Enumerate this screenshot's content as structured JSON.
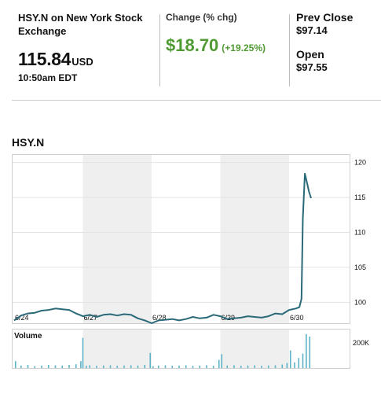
{
  "quote": {
    "symbol_label": "HSY.N on New York Stock Exchange",
    "price": "115.84",
    "currency": "USD",
    "time": "10:50am EDT",
    "change_label": "Change (% chg)",
    "change_value": "$18.70",
    "change_pct": "(+19.25%)",
    "prev_close_label": "Prev Close",
    "prev_close_value": "$97.14",
    "open_label": "Open",
    "open_value": "$97.55"
  },
  "colors": {
    "positive": "#4f9a33",
    "line": "#2a6a78",
    "volume": "#5bb3c8",
    "shade": "#efefef"
  },
  "chart_data": {
    "type": "line",
    "title": "HSY.N",
    "y_ticks": [
      100,
      105,
      110,
      115,
      120
    ],
    "ylim": [
      97,
      121.2
    ],
    "x_ticks": [
      "6/24",
      "6/27",
      "6/28",
      "6/29",
      "6/30"
    ],
    "shaded_days": [
      "6/27",
      "6/29"
    ],
    "series": [
      {
        "x": [
          0,
          0.1,
          0.2,
          0.3,
          0.4,
          0.5,
          0.6,
          0.7,
          0.8,
          0.9,
          1,
          1.1,
          1.2,
          1.3,
          1.4,
          1.5,
          1.6,
          1.7,
          1.8,
          1.9,
          2,
          2.1,
          2.2,
          2.3,
          2.4,
          2.5,
          2.6,
          2.7,
          2.8,
          2.9,
          3,
          3.1,
          3.2,
          3.3,
          3.4,
          3.5,
          3.6,
          3.7,
          3.8,
          3.9,
          4,
          4.1,
          4.15,
          4.18,
          4.2,
          4.23,
          4.26,
          4.29,
          4.32
        ],
        "values": [
          97.4,
          98.1,
          98.4,
          98.5,
          98.8,
          98.9,
          99.1,
          99.0,
          98.9,
          98.4,
          98.0,
          98.2,
          97.9,
          98.2,
          98.3,
          98.1,
          98.3,
          98.2,
          97.7,
          97.4,
          97.0,
          97.4,
          97.5,
          97.6,
          97.4,
          97.6,
          97.9,
          97.7,
          97.8,
          98.2,
          98.0,
          97.6,
          97.7,
          97.8,
          98.0,
          97.9,
          97.8,
          98.0,
          98.4,
          98.3,
          98.9,
          99.1,
          99.3,
          100.5,
          112.0,
          118.4,
          117.1,
          115.8,
          114.9
        ]
      }
    ],
    "volume": {
      "label": "Volume",
      "tick": "200K",
      "max": 300,
      "x": [
        0.02,
        0.1,
        0.2,
        0.3,
        0.4,
        0.5,
        0.6,
        0.7,
        0.8,
        0.9,
        0.97,
        1.0,
        1.05,
        1.1,
        1.2,
        1.3,
        1.4,
        1.5,
        1.6,
        1.7,
        1.8,
        1.9,
        1.98,
        2.02,
        2.1,
        2.2,
        2.3,
        2.4,
        2.5,
        2.6,
        2.7,
        2.8,
        2.9,
        2.98,
        3.02,
        3.1,
        3.2,
        3.3,
        3.4,
        3.5,
        3.6,
        3.7,
        3.8,
        3.9,
        3.97,
        4.02,
        4.08,
        4.14,
        4.2,
        4.25,
        4.3
      ],
      "values": [
        55,
        20,
        25,
        15,
        20,
        25,
        22,
        20,
        25,
        30,
        55,
        240,
        18,
        22,
        18,
        20,
        22,
        18,
        20,
        22,
        20,
        25,
        120,
        15,
        20,
        22,
        18,
        20,
        22,
        18,
        20,
        22,
        18,
        65,
        110,
        20,
        22,
        18,
        20,
        22,
        18,
        20,
        22,
        28,
        40,
        140,
        45,
        80,
        115,
        270,
        250
      ]
    }
  }
}
